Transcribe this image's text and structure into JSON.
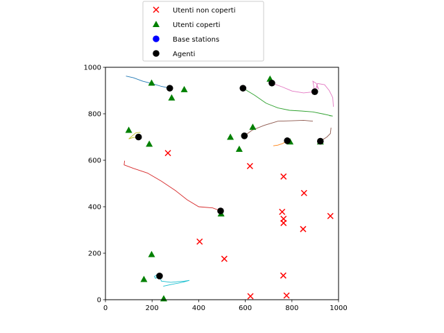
{
  "chart_data": {
    "type": "scatter",
    "xlim": [
      0,
      1000
    ],
    "ylim": [
      0,
      1000
    ],
    "x_ticks": [
      "0",
      "200",
      "400",
      "600",
      "800",
      "1000"
    ],
    "y_ticks": [
      "0",
      "200",
      "400",
      "600",
      "800",
      "1000"
    ],
    "grid": false,
    "legend_position": "top-center",
    "legend": [
      {
        "label": "Utenti non coperti",
        "marker": "x",
        "color": "#ff0000"
      },
      {
        "label": "Utenti coperti",
        "marker": "triangle",
        "color": "#008000"
      },
      {
        "label": "Base stations",
        "marker": "circle",
        "color": "#0000ff"
      },
      {
        "label": "Agenti",
        "marker": "circle",
        "color": "#000000"
      }
    ],
    "series": [
      {
        "name": "Utenti non coperti",
        "marker": "x",
        "color": "#ff0000",
        "points": [
          [
            268,
            631
          ],
          [
            620,
            575
          ],
          [
            764,
            530
          ],
          [
            852,
            459
          ],
          [
            965,
            360
          ],
          [
            758,
            378
          ],
          [
            764,
            348
          ],
          [
            764,
            330
          ],
          [
            848,
            304
          ],
          [
            404,
            250
          ],
          [
            510,
            176
          ],
          [
            763,
            104
          ],
          [
            622,
            15
          ],
          [
            777,
            18
          ]
        ]
      },
      {
        "name": "Utenti coperti",
        "marker": "triangle",
        "color": "#008000",
        "points": [
          [
            198,
            933
          ],
          [
            284,
            869
          ],
          [
            338,
            905
          ],
          [
            100,
            730
          ],
          [
            188,
            670
          ],
          [
            536,
            700
          ],
          [
            632,
            743
          ],
          [
            574,
            648
          ],
          [
            706,
            950
          ],
          [
            792,
            680
          ],
          [
            922,
            680
          ],
          [
            496,
            370
          ],
          [
            198,
            195
          ],
          [
            165,
            88
          ],
          [
            250,
            5
          ]
        ]
      },
      {
        "name": "Agenti",
        "marker": "circle",
        "color": "#000000",
        "points": [
          [
            276,
            910
          ],
          [
            590,
            910
          ],
          [
            714,
            932
          ],
          [
            898,
            895
          ],
          [
            142,
            700
          ],
          [
            596,
            705
          ],
          [
            780,
            684
          ],
          [
            922,
            682
          ],
          [
            494,
            382
          ],
          [
            232,
            102
          ]
        ]
      }
    ],
    "trajectories": [
      {
        "color": "#1f77b4",
        "points": [
          [
            88,
            962
          ],
          [
            120,
            955
          ],
          [
            160,
            940
          ],
          [
            200,
            930
          ],
          [
            240,
            918
          ],
          [
            276,
            910
          ]
        ]
      },
      {
        "color": "#e377c2",
        "points": [
          [
            714,
            932
          ],
          [
            760,
            915
          ],
          [
            800,
            898
          ],
          [
            850,
            890
          ],
          [
            898,
            895
          ],
          [
            910,
            930
          ],
          [
            940,
            925
          ],
          [
            960,
            900
          ],
          [
            975,
            870
          ],
          [
            978,
            830
          ]
        ]
      },
      {
        "color": "#e377c2",
        "points": [
          [
            898,
            895
          ],
          [
            890,
            940
          ],
          [
            905,
            930
          ],
          [
            915,
            905
          ],
          [
            905,
            920
          ]
        ]
      },
      {
        "color": "#2ca02c",
        "points": [
          [
            590,
            910
          ],
          [
            640,
            880
          ],
          [
            690,
            845
          ],
          [
            740,
            825
          ],
          [
            790,
            815
          ],
          [
            840,
            812
          ],
          [
            890,
            808
          ],
          [
            930,
            800
          ],
          [
            975,
            790
          ],
          [
            960,
            792
          ]
        ]
      },
      {
        "color": "#8c564b",
        "points": [
          [
            596,
            705
          ],
          [
            630,
            730
          ],
          [
            680,
            750
          ],
          [
            740,
            768
          ],
          [
            800,
            770
          ],
          [
            850,
            772
          ],
          [
            890,
            768
          ]
        ]
      },
      {
        "color": "#8c564b",
        "points": [
          [
            922,
            682
          ],
          [
            950,
            700
          ],
          [
            965,
            715
          ],
          [
            968,
            740
          ]
        ]
      },
      {
        "color": "#ff7f0e",
        "points": [
          [
            780,
            684
          ],
          [
            760,
            672
          ],
          [
            740,
            665
          ],
          [
            720,
            662
          ]
        ]
      },
      {
        "color": "#bcbd22",
        "points": [
          [
            142,
            700
          ],
          [
            120,
            698
          ],
          [
            100,
            692
          ],
          [
            130,
            718
          ],
          [
            150,
            720
          ]
        ]
      },
      {
        "color": "#d62728",
        "points": [
          [
            82,
            598
          ],
          [
            80,
            580
          ],
          [
            120,
            565
          ],
          [
            180,
            545
          ],
          [
            240,
            510
          ],
          [
            300,
            470
          ],
          [
            350,
            430
          ],
          [
            400,
            400
          ],
          [
            460,
            395
          ],
          [
            494,
            382
          ]
        ]
      },
      {
        "color": "#17becf",
        "points": [
          [
            232,
            102
          ],
          [
            240,
            80
          ],
          [
            280,
            75
          ],
          [
            340,
            80
          ],
          [
            360,
            83
          ],
          [
            330,
            75
          ],
          [
            280,
            65
          ],
          [
            248,
            58
          ]
        ]
      },
      {
        "color": "#17becf",
        "points": [
          [
            232,
            102
          ],
          [
            215,
            92
          ],
          [
            210,
            100
          ],
          [
            225,
            110
          ]
        ]
      }
    ]
  }
}
